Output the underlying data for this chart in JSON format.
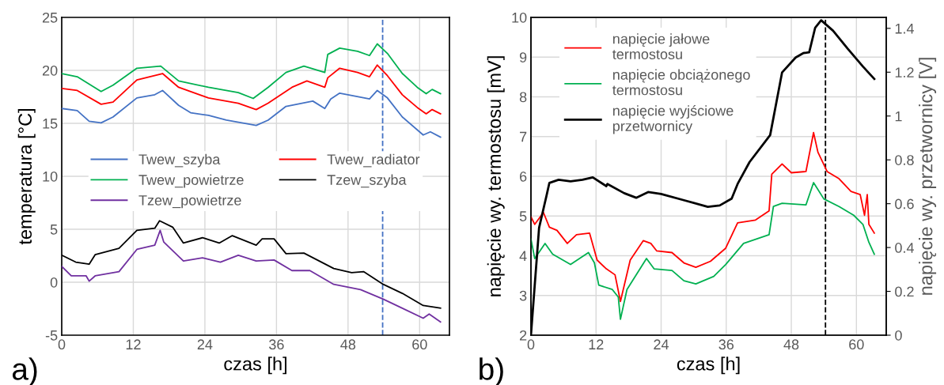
{
  "chart_data": [
    {
      "type": "line",
      "xlabel": "czas [h]",
      "ylabel": "temperatura [°C]",
      "annotations": [
        "a)"
      ],
      "xlim": [
        0,
        65
      ],
      "xticks": [
        0,
        12,
        24,
        36,
        48,
        60
      ],
      "ylim": [
        -5,
        25
      ],
      "yticks": [
        -5,
        0,
        5,
        10,
        15,
        20,
        25
      ],
      "grid": true,
      "legend": "center",
      "ref_lines": [
        {
          "axis": "x",
          "value": 53.8,
          "color": "#4472c4",
          "line_style": "dashed"
        }
      ],
      "series": [
        {
          "name": "Twew_szyba",
          "color": "#4472c4",
          "x": [
            0,
            2.6,
            4.6,
            6.6,
            8.6,
            12.6,
            15.6,
            16.9,
            19.6,
            21.6,
            24.6,
            27.6,
            32.6,
            34.6,
            37.6,
            42.1,
            44.1,
            45.1,
            46.6,
            51.6,
            52.9,
            54.6,
            57.1,
            60.6,
            61.8,
            63.5
          ],
          "values": [
            16.4,
            16.2,
            15.2,
            15.05,
            15.6,
            17.4,
            17.7,
            18.1,
            16.7,
            16.0,
            15.75,
            15.3,
            14.8,
            15.3,
            16.6,
            17.1,
            16.4,
            17.3,
            17.85,
            17.3,
            18.1,
            17.4,
            15.6,
            13.9,
            14.2,
            13.7
          ]
        },
        {
          "name": "Twew_radiator",
          "color": "#ff0000",
          "x": [
            0,
            2.6,
            6.6,
            8.6,
            12.6,
            16.9,
            19.6,
            24.6,
            29.6,
            32.6,
            34.6,
            38.6,
            41.1,
            44.1,
            44.6,
            46.6,
            49.6,
            51.6,
            52.9,
            54.6,
            57.1,
            59.6,
            61.1,
            62.1,
            63.5
          ],
          "values": [
            18.3,
            18.1,
            16.8,
            17.0,
            19.1,
            19.7,
            18.4,
            17.4,
            16.9,
            16.3,
            16.9,
            18.4,
            19.0,
            18.4,
            19.3,
            20.2,
            19.8,
            19.4,
            20.5,
            19.5,
            17.7,
            16.5,
            15.9,
            16.3,
            15.9
          ]
        },
        {
          "name": "Twew_powietrze",
          "color": "#00b050",
          "x": [
            0,
            2.6,
            6.6,
            8.6,
            12.6,
            16.6,
            19.6,
            24.6,
            29.6,
            32.1,
            34.6,
            37.6,
            40.6,
            44.1,
            44.6,
            46.6,
            49.6,
            51.6,
            52.9,
            54.6,
            57.1,
            59.6,
            61.1,
            62.1,
            63.5
          ],
          "values": [
            19.7,
            19.4,
            18.0,
            18.6,
            20.2,
            20.4,
            19.0,
            18.4,
            17.9,
            17.35,
            18.4,
            19.8,
            20.4,
            19.8,
            21.5,
            22.1,
            21.8,
            21.4,
            22.5,
            21.6,
            19.7,
            18.4,
            17.8,
            18.2,
            17.8
          ]
        },
        {
          "name": "Tzew_szyba",
          "color": "#000000",
          "x": [
            0,
            2.35,
            4.6,
            5.6,
            9.6,
            12.6,
            15.6,
            16.4,
            18.6,
            20.4,
            23.6,
            26.4,
            28.6,
            32.6,
            33.6,
            35.6,
            37.6,
            40.6,
            45.6,
            48.6,
            50.6,
            53.9,
            57.1,
            60.6,
            63.5
          ],
          "values": [
            2.56,
            1.9,
            1.7,
            2.6,
            3.2,
            4.9,
            5.1,
            5.8,
            5.2,
            3.7,
            4.2,
            3.7,
            4.4,
            3.5,
            4.1,
            4.1,
            2.7,
            2.75,
            1.3,
            0.9,
            1.0,
            -0.2,
            -1.05,
            -2.2,
            -2.45
          ]
        },
        {
          "name": "Tzew_powietrze",
          "color": "#7030a0",
          "x": [
            0,
            1.6,
            4.1,
            4.6,
            5.6,
            9.6,
            12.6,
            15.6,
            16.5,
            17.1,
            20.4,
            23.6,
            26.6,
            29.6,
            32.6,
            35.6,
            38.6,
            41.6,
            45.6,
            50.1,
            53.9,
            57.1,
            60.6,
            61.6,
            63.5
          ],
          "values": [
            1.5,
            0.6,
            0.6,
            0.1,
            0.6,
            1.0,
            3.1,
            3.5,
            4.9,
            3.8,
            2.0,
            2.3,
            1.9,
            2.55,
            2.0,
            2.1,
            1.1,
            1.1,
            -0.2,
            -0.7,
            -1.6,
            -2.45,
            -3.4,
            -3.0,
            -3.75
          ]
        }
      ]
    },
    {
      "type": "line",
      "xlabel": "czas [h]",
      "ylabel": "napięcie wy. termostosu [mV]",
      "y2label": "napięcie wy. przetwornicy [V]",
      "annotations": [
        "b)"
      ],
      "xlim": [
        0,
        65.5
      ],
      "xticks": [
        0,
        12,
        24,
        36,
        48,
        60
      ],
      "ylim": [
        2,
        10
      ],
      "yticks": [
        2,
        3,
        4,
        5,
        6,
        7,
        8,
        9,
        10
      ],
      "y2lim": [
        0,
        1.45
      ],
      "y2ticks": [
        0,
        0.2,
        0.4,
        0.6,
        0.8,
        1,
        1.2,
        1.4
      ],
      "grid": true,
      "legend": "top left",
      "ref_lines": [
        {
          "axis": "x",
          "value": 54.3,
          "color": "#000000",
          "line_style": "dashed"
        }
      ],
      "series": [
        {
          "name": "napięcie jałowe termostosu",
          "color": "#ff0000",
          "x": [
            0,
            0.7,
            2.3,
            3.4,
            4.8,
            6.7,
            8.4,
            10.8,
            12.2,
            13.9,
            15.5,
            16.5,
            18.3,
            20.7,
            22.1,
            23.2,
            26.0,
            28.2,
            30.4,
            33.1,
            35.9,
            38.1,
            41.4,
            43.9,
            44.4,
            46.3,
            48.0,
            50.7,
            52.1,
            52.9,
            54.6,
            56.8,
            59.0,
            60.7,
            61.5,
            62.0,
            62.3,
            63.3
          ],
          "values": [
            4.98,
            4.79,
            5.09,
            4.72,
            4.64,
            4.31,
            4.53,
            4.57,
            3.89,
            3.67,
            3.52,
            2.85,
            3.89,
            4.38,
            4.31,
            4.12,
            4.08,
            3.82,
            3.71,
            3.86,
            4.19,
            4.83,
            4.9,
            5.13,
            6.05,
            6.31,
            6.09,
            6.12,
            7.1,
            6.61,
            6.12,
            5.94,
            5.62,
            5.54,
            5.02,
            5.54,
            4.79,
            4.57
          ]
        },
        {
          "name": "napięcie obciążonego termostosu",
          "color": "#00b050",
          "x": [
            0,
            0.7,
            2.6,
            4.0,
            7.3,
            10.6,
            11.7,
            12.5,
            15.0,
            16.1,
            16.5,
            17.7,
            21.3,
            22.7,
            26.0,
            28.2,
            30.4,
            33.7,
            35.9,
            39.2,
            43.9,
            44.7,
            46.3,
            50.7,
            52.1,
            54.0,
            56.8,
            59.5,
            61.2,
            62.3,
            63.3
          ],
          "values": [
            4.42,
            3.93,
            4.31,
            4.04,
            3.78,
            4.08,
            3.82,
            3.26,
            3.15,
            2.96,
            2.4,
            3.15,
            3.93,
            3.67,
            3.63,
            3.37,
            3.29,
            3.48,
            3.78,
            4.31,
            4.53,
            5.24,
            5.32,
            5.28,
            5.84,
            5.43,
            5.24,
            5.02,
            4.79,
            4.34,
            4.04
          ]
        },
        {
          "name": "napięcie wyjściowe przetwornicy",
          "color": "#000000",
          "axis": "y2",
          "x": [
            0,
            1.5,
            2.9,
            3.4,
            5.1,
            7.3,
            9.5,
            11.4,
            13.9,
            14.1,
            17.2,
            19.4,
            21.6,
            24.0,
            28.2,
            32.6,
            34.8,
            37.0,
            38.1,
            40.3,
            44.1,
            46.3,
            48.8,
            50.2,
            51.3,
            52.4,
            53.5,
            55.7,
            58.4,
            61.2,
            63.3
          ],
          "values": [
            0,
            0.49,
            0.64,
            0.695,
            0.709,
            0.702,
            0.709,
            0.72,
            0.68,
            0.69,
            0.648,
            0.627,
            0.653,
            0.644,
            0.616,
            0.586,
            0.592,
            0.623,
            0.69,
            0.79,
            0.913,
            1.199,
            1.267,
            1.287,
            1.291,
            1.403,
            1.437,
            1.389,
            1.307,
            1.226,
            1.169
          ]
        }
      ]
    }
  ]
}
